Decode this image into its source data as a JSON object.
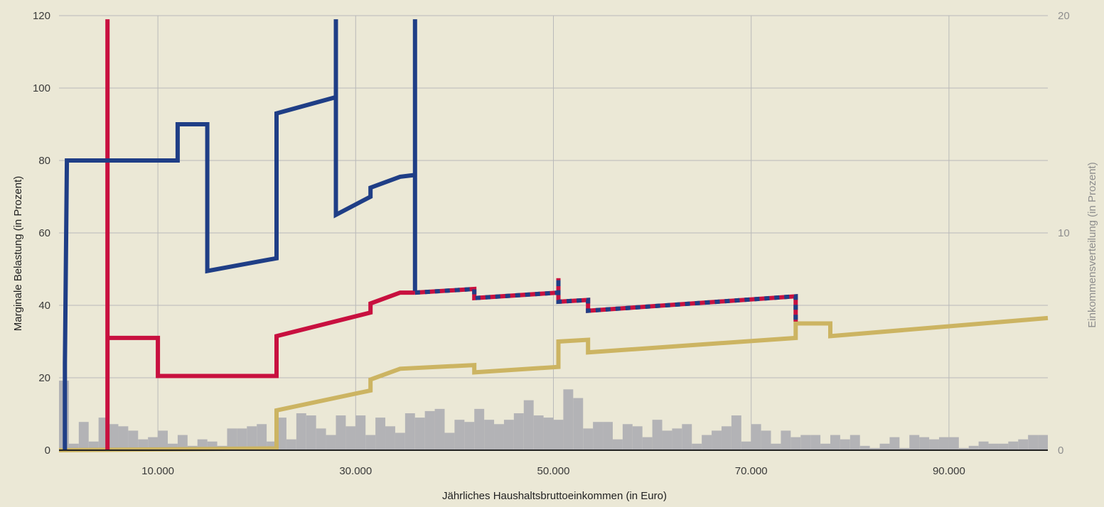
{
  "colors": {
    "background": "#ebe8d6",
    "grid": "#b9b9b9",
    "histogram": "#b3b3b6",
    "blue": "#1f3e86",
    "red": "#c8103f",
    "gold": "#ccb462",
    "axis": "#222222"
  },
  "chart_data": {
    "type": "line",
    "xlabel": "Jährliches Haushaltsbruttoeinkommen (in Euro)",
    "ylabel": "Marginale Belastung (in Prozent)",
    "y2label": "Einkommensverteilung (in Prozent)",
    "xlim": [
      0,
      100000
    ],
    "ylim": [
      0,
      120
    ],
    "y2lim": [
      0,
      20
    ],
    "x_ticks": [
      10000,
      30000,
      50000,
      70000,
      90000
    ],
    "x_tick_labels": [
      "10.000",
      "30.000",
      "50.000",
      "70.000",
      "90.000"
    ],
    "y_ticks": [
      0,
      20,
      40,
      60,
      80,
      100,
      120
    ],
    "y_tick_labels": [
      "0",
      "20",
      "40",
      "60",
      "80",
      "100",
      "120"
    ],
    "y2_ticks": [
      0,
      10,
      20
    ],
    "y2_tick_labels": [
      "0",
      "10",
      "20"
    ],
    "grid": true,
    "series": [
      {
        "color": "blue",
        "points": [
          [
            600,
            0
          ],
          [
            600,
            24
          ],
          [
            800,
            80
          ],
          [
            12000,
            80
          ],
          [
            12000,
            90
          ],
          [
            15000,
            90
          ],
          [
            15000,
            49.5
          ],
          [
            22000,
            53
          ],
          [
            22000,
            93
          ],
          [
            28000,
            97.5
          ],
          [
            28000,
            119
          ],
          [
            28000,
            65
          ],
          [
            31500,
            70
          ],
          [
            31500,
            72.5
          ],
          [
            34500,
            75.5
          ],
          [
            36000,
            76
          ],
          [
            36000,
            119
          ],
          [
            36000,
            44
          ]
        ]
      },
      {
        "color": "red",
        "points": [
          [
            4900,
            0
          ],
          [
            4900,
            119
          ],
          [
            4900,
            31
          ],
          [
            10000,
            31
          ],
          [
            10000,
            20.5
          ],
          [
            22000,
            20.5
          ],
          [
            22000,
            31.5
          ],
          [
            31500,
            38
          ],
          [
            31500,
            40.5
          ],
          [
            34500,
            43.5
          ],
          [
            36000,
            43.5
          ]
        ]
      },
      {
        "color": "blue-red-dashed",
        "points": [
          [
            36000,
            43.5
          ],
          [
            42000,
            44.5
          ],
          [
            42000,
            42
          ],
          [
            50500,
            43.5
          ],
          [
            50500,
            47.5
          ],
          [
            50500,
            41
          ],
          [
            53500,
            41.5
          ],
          [
            53500,
            38.5
          ],
          [
            74500,
            42.5
          ],
          [
            74500,
            35.5
          ]
        ]
      },
      {
        "color": "gold",
        "points": [
          [
            0,
            0
          ],
          [
            22000,
            0.5
          ],
          [
            22000,
            11
          ],
          [
            31500,
            16.5
          ],
          [
            31500,
            19.5
          ],
          [
            34500,
            22.5
          ],
          [
            42000,
            23.5
          ],
          [
            42000,
            21.5
          ],
          [
            50500,
            23
          ],
          [
            50500,
            30
          ],
          [
            53500,
            30.5
          ],
          [
            53500,
            27
          ],
          [
            74500,
            31
          ],
          [
            74500,
            35
          ],
          [
            78000,
            35
          ],
          [
            78000,
            31.5
          ],
          [
            100000,
            36.5
          ]
        ]
      }
    ],
    "histogram": {
      "name": "Einkommensverteilung",
      "bin_width": 1000,
      "bin_starts": [
        0,
        1000,
        2000,
        3000,
        4000,
        5000,
        6000,
        7000,
        8000,
        9000,
        10000,
        11000,
        12000,
        13000,
        14000,
        15000,
        16000,
        17000,
        18000,
        19000,
        20000,
        21000,
        22000,
        23000,
        24000,
        25000,
        26000,
        27000,
        28000,
        29000,
        30000,
        31000,
        32000,
        33000,
        34000,
        35000,
        36000,
        37000,
        38000,
        39000,
        40000,
        41000,
        42000,
        43000,
        44000,
        45000,
        46000,
        47000,
        48000,
        49000,
        50000,
        51000,
        52000,
        53000,
        54000,
        55000,
        56000,
        57000,
        58000,
        59000,
        60000,
        61000,
        62000,
        63000,
        64000,
        65000,
        66000,
        67000,
        68000,
        69000,
        70000,
        71000,
        72000,
        73000,
        74000,
        75000,
        76000,
        77000,
        78000,
        79000,
        80000,
        81000,
        82000,
        83000,
        84000,
        85000,
        86000,
        87000,
        88000,
        89000,
        90000,
        91000,
        92000,
        93000,
        94000,
        95000,
        96000,
        97000,
        98000,
        99000
      ],
      "values": [
        3.2,
        0.3,
        1.3,
        0.4,
        1.5,
        1.2,
        1.1,
        0.9,
        0.5,
        0.6,
        0.9,
        0.3,
        0.7,
        0.2,
        0.5,
        0.4,
        0.2,
        1.0,
        1.0,
        1.1,
        1.2,
        0.4,
        1.5,
        0.5,
        1.7,
        1.6,
        1.0,
        0.7,
        1.6,
        1.1,
        1.6,
        0.7,
        1.5,
        1.1,
        0.8,
        1.7,
        1.5,
        1.8,
        1.9,
        0.8,
        1.4,
        1.3,
        1.9,
        1.4,
        1.2,
        1.4,
        1.7,
        2.3,
        1.6,
        1.5,
        1.4,
        2.8,
        2.4,
        1.0,
        1.3,
        1.3,
        0.5,
        1.2,
        1.1,
        0.6,
        1.4,
        0.9,
        1.0,
        1.2,
        0.3,
        0.7,
        0.9,
        1.1,
        1.6,
        0.4,
        1.2,
        0.9,
        0.3,
        0.9,
        0.6,
        0.7,
        0.7,
        0.3,
        0.7,
        0.5,
        0.7,
        0.2,
        0.1,
        0.3,
        0.6,
        0.1,
        0.7,
        0.6,
        0.5,
        0.6,
        0.6,
        0.1,
        0.2,
        0.4,
        0.3,
        0.3,
        0.4,
        0.5,
        0.7,
        0.7
      ]
    }
  }
}
